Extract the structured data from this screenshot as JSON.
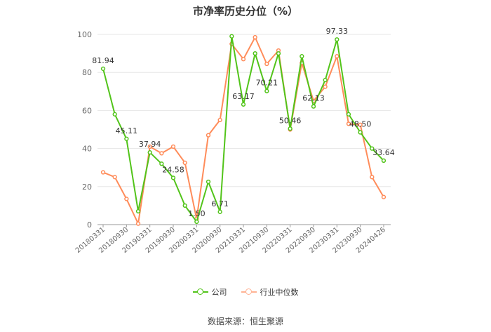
{
  "chart_data": {
    "type": "line",
    "title": "市净率历史分位（%）",
    "ylim": [
      0,
      100
    ],
    "yticks": [
      0,
      20,
      40,
      60,
      80,
      100
    ],
    "x_labels": [
      "20180331",
      "20180930",
      "20190331",
      "20190930",
      "20200331",
      "20200930",
      "20210331",
      "20210930",
      "20220331",
      "20220930",
      "20230331",
      "20230930",
      "20240426"
    ],
    "grid": true,
    "legend_position": "bottom",
    "series": [
      {
        "name": "公司",
        "color": "#52c41a",
        "values": [
          81.94,
          58,
          45.11,
          7,
          37.94,
          32,
          24.58,
          10,
          1.5,
          22.5,
          6.71,
          99,
          63.17,
          90,
          70.21,
          90,
          50.46,
          88.5,
          62.13,
          76,
          97.33,
          58,
          48.5,
          40,
          33.64
        ],
        "labels": {
          "0": "81.94",
          "2": "45.11",
          "4": "37.94",
          "6": "24.58",
          "8": "1.50",
          "10": "6.71",
          "12": "63.17",
          "14": "70.21",
          "16": "50.46",
          "18": "62.13",
          "20": "97.33",
          "22": "48.50",
          "24": "33.64"
        }
      },
      {
        "name": "行业中位数",
        "color": "#ff8c5a",
        "values": [
          27.5,
          25,
          13.5,
          0.5,
          41,
          37.5,
          41,
          32.5,
          3,
          47,
          55,
          95,
          87,
          98.5,
          84.5,
          91.5,
          50,
          85,
          65,
          72.5,
          88.5,
          53,
          52.5,
          25,
          14.5
        ]
      }
    ]
  },
  "source_text": "数据来源：恒生聚源"
}
